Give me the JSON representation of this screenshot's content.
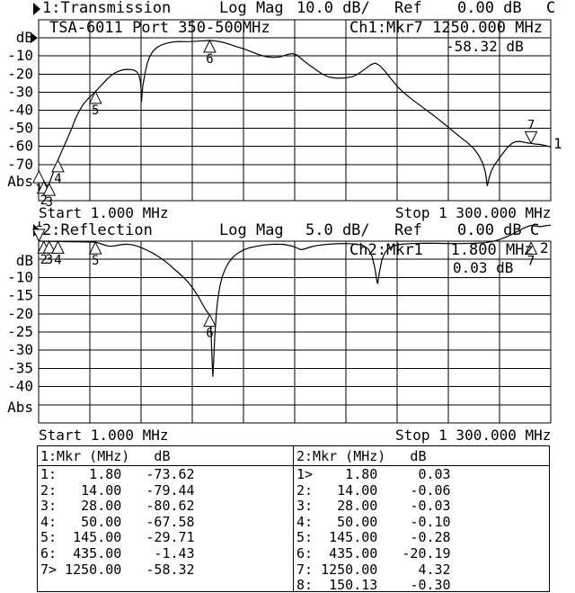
{
  "colors": {
    "fg": "#000000",
    "bg": "#ffffff"
  },
  "chart_data": [
    {
      "type": "line",
      "channel_header": {
        "indicator": "right-arrow",
        "name": "1:Transmission",
        "scale_label": "Log Mag",
        "scale": "10.0 dB/",
        "ref_label": "Ref",
        "ref": "0.00 dB",
        "cal": "C"
      },
      "title": "TSA-6011 Port 350-500MHz",
      "marker_readout": "Ch1:Mkr7 1250.000 MHz",
      "marker_value": "-58.32 dB",
      "xlabel_start": "Start 1.000 MHz",
      "xlabel_stop": "Stop 1 300.000 MHz",
      "x_range_mhz": [
        1,
        1300
      ],
      "db_per_div": 10,
      "ref_db": 0,
      "grid": "on",
      "trace_number": "1",
      "yticks": [
        {
          "label": "dB",
          "db": 0
        },
        {
          "label": "-10",
          "db": -10
        },
        {
          "label": "-20",
          "db": -20
        },
        {
          "label": "-30",
          "db": -30
        },
        {
          "label": "-40",
          "db": -40
        },
        {
          "label": "-50",
          "db": -50
        },
        {
          "label": "-60",
          "db": -60
        },
        {
          "label": "-70",
          "db": -70
        },
        {
          "label": "Abs",
          "db": -79.5
        }
      ],
      "markers": [
        {
          "n": "1",
          "f": 1.8,
          "db": -73.62
        },
        {
          "n": "2",
          "f": 14,
          "db": -79.44
        },
        {
          "n": "3",
          "f": 28,
          "db": -80.62
        },
        {
          "n": "4",
          "f": 50,
          "db": -67.58
        },
        {
          "n": "5",
          "f": 145,
          "db": -29.71
        },
        {
          "n": "6",
          "f": 435,
          "db": -1.43
        },
        {
          "n": "7",
          "f": 1250,
          "db": -58.32,
          "active": true
        }
      ],
      "trace": [
        [
          1,
          -74.5
        ],
        [
          1.8,
          -73.62
        ],
        [
          5,
          -75.8
        ],
        [
          9,
          -77.8
        ],
        [
          14,
          -79.44
        ],
        [
          19,
          -81
        ],
        [
          23,
          -81.8
        ],
        [
          28,
          -80.62
        ],
        [
          33,
          -77.5
        ],
        [
          40,
          -73.5
        ],
        [
          45,
          -70.5
        ],
        [
          50,
          -67.58
        ],
        [
          57,
          -64
        ],
        [
          65,
          -60
        ],
        [
          75,
          -55
        ],
        [
          85,
          -50
        ],
        [
          95,
          -44.5
        ],
        [
          105,
          -40
        ],
        [
          115,
          -36.5
        ],
        [
          125,
          -34
        ],
        [
          135,
          -31.8
        ],
        [
          145,
          -29.71
        ],
        [
          155,
          -27.3
        ],
        [
          165,
          -25
        ],
        [
          175,
          -22.7
        ],
        [
          185,
          -20.8
        ],
        [
          195,
          -19.3
        ],
        [
          205,
          -18.3
        ],
        [
          215,
          -17.6
        ],
        [
          225,
          -17.4
        ],
        [
          235,
          -17.5
        ],
        [
          243,
          -17.9
        ],
        [
          250,
          -18.8
        ],
        [
          255,
          -20.5
        ],
        [
          259,
          -24
        ],
        [
          261,
          -29
        ],
        [
          262,
          -35.3
        ],
        [
          263,
          -32
        ],
        [
          265,
          -27
        ],
        [
          268,
          -23
        ],
        [
          272,
          -18.5
        ],
        [
          277,
          -13.8
        ],
        [
          283,
          -10.3
        ],
        [
          291,
          -7.3
        ],
        [
          301,
          -5.3
        ],
        [
          313,
          -3.9
        ],
        [
          327,
          -2.9
        ],
        [
          341,
          -2.3
        ],
        [
          356,
          -2.0
        ],
        [
          371,
          -2.1
        ],
        [
          386,
          -2.05
        ],
        [
          402,
          -1.85
        ],
        [
          419,
          -1.6
        ],
        [
          435,
          -1.43
        ],
        [
          450,
          -1.7
        ],
        [
          463,
          -2.2
        ],
        [
          476,
          -2.9
        ],
        [
          490,
          -3.9
        ],
        [
          505,
          -5.0
        ],
        [
          521,
          -6.0
        ],
        [
          540,
          -7.6
        ],
        [
          559,
          -9.2
        ],
        [
          578,
          -10.4
        ],
        [
          597,
          -10.8
        ],
        [
          614,
          -10.5
        ],
        [
          630,
          -9.3
        ],
        [
          644,
          -8.6
        ],
        [
          657,
          -9.6
        ],
        [
          671,
          -12.2
        ],
        [
          686,
          -14.8
        ],
        [
          702,
          -17.2
        ],
        [
          719,
          -19.8
        ],
        [
          737,
          -21.7
        ],
        [
          757,
          -22.3
        ],
        [
          777,
          -22.2
        ],
        [
          797,
          -21.5
        ],
        [
          814,
          -19.6
        ],
        [
          830,
          -17
        ],
        [
          844,
          -14.8
        ],
        [
          855,
          -13.9
        ],
        [
          867,
          -15.4
        ],
        [
          881,
          -18.8
        ],
        [
          897,
          -23.2
        ],
        [
          914,
          -27.6
        ],
        [
          931,
          -31
        ],
        [
          949,
          -34.2
        ],
        [
          969,
          -37.4
        ],
        [
          989,
          -40.6
        ],
        [
          1009,
          -43.9
        ],
        [
          1029,
          -47.4
        ],
        [
          1049,
          -51
        ],
        [
          1069,
          -54.6
        ],
        [
          1088,
          -57.8
        ],
        [
          1104,
          -61
        ],
        [
          1117,
          -64.8
        ],
        [
          1127,
          -69
        ],
        [
          1134,
          -74
        ],
        [
          1139,
          -81.9
        ],
        [
          1143,
          -78
        ],
        [
          1149,
          -73.8
        ],
        [
          1157,
          -70.3
        ],
        [
          1166,
          -67.6
        ],
        [
          1178,
          -64
        ],
        [
          1190,
          -60.6
        ],
        [
          1201,
          -58.4
        ],
        [
          1211,
          -57.4
        ],
        [
          1221,
          -57.2
        ],
        [
          1231,
          -57.6
        ],
        [
          1241,
          -58.1
        ],
        [
          1250,
          -58.32
        ],
        [
          1261,
          -58.7
        ],
        [
          1273,
          -58.9
        ],
        [
          1286,
          -59.5
        ],
        [
          1300,
          -60.3
        ]
      ]
    },
    {
      "type": "line",
      "channel_header": {
        "indicator": "right-arrow",
        "name": "2:Reflection",
        "scale_label": "Log Mag",
        "scale": "5.0 dB/",
        "ref_label": "Ref",
        "ref": "0.00 dB",
        "cal": "C"
      },
      "title": "",
      "marker_readout": "Ch2:Mkr1   1.800 MHz",
      "marker_value": "0.03 dB",
      "xlabel_start": "Start 1.000 MHz",
      "xlabel_stop": "Stop 1 300.000 MHz",
      "x_range_mhz": [
        1,
        1300
      ],
      "db_per_div": 5,
      "ref_db": 0,
      "grid": "on",
      "trace_number": "2",
      "yticks": [
        {
          "label": "dB",
          "db": -5.4
        },
        {
          "label": "-10",
          "db": -10
        },
        {
          "label": "-15",
          "db": -15
        },
        {
          "label": "-20",
          "db": -20
        },
        {
          "label": "-25",
          "db": -25
        },
        {
          "label": "-30",
          "db": -30
        },
        {
          "label": "-35",
          "db": -35
        },
        {
          "label": "-40",
          "db": -40
        },
        {
          "label": "Abs",
          "db": -45.8
        }
      ],
      "markers": [
        {
          "n": "1",
          "f": 1.8,
          "db": 0.03,
          "active": true
        },
        {
          "n": "2",
          "f": 14,
          "db": -0.06
        },
        {
          "n": "3",
          "f": 28,
          "db": -0.03
        },
        {
          "n": "4",
          "f": 50,
          "db": -0.1
        },
        {
          "n": "5",
          "f": 145,
          "db": -0.28
        },
        {
          "n": "6",
          "f": 435,
          "db": -20.19
        },
        {
          "n": "7",
          "f": 1250,
          "db": 4.32,
          "apex_db": -0.35
        }
      ],
      "trace": [
        [
          1,
          0.02
        ],
        [
          1.8,
          0.03
        ],
        [
          14,
          -0.06
        ],
        [
          28,
          -0.03
        ],
        [
          50,
          -0.1
        ],
        [
          80,
          -0.15
        ],
        [
          110,
          -0.2
        ],
        [
          145,
          -0.28
        ],
        [
          156,
          -0.6
        ],
        [
          166,
          -1.0
        ],
        [
          176,
          -1.3
        ],
        [
          186,
          -1.4
        ],
        [
          196,
          -1.25
        ],
        [
          208,
          -1.0
        ],
        [
          222,
          -0.85
        ],
        [
          236,
          -0.95
        ],
        [
          250,
          -1.3
        ],
        [
          264,
          -1.9
        ],
        [
          278,
          -2.6
        ],
        [
          292,
          -3.4
        ],
        [
          306,
          -4.3
        ],
        [
          320,
          -5.4
        ],
        [
          334,
          -6.6
        ],
        [
          346,
          -7.8
        ],
        [
          358,
          -8.9
        ],
        [
          370,
          -10.1
        ],
        [
          382,
          -11.5
        ],
        [
          394,
          -13.2
        ],
        [
          406,
          -15.2
        ],
        [
          416,
          -17.2
        ],
        [
          425,
          -18.9
        ],
        [
          432,
          -19.9
        ],
        [
          435,
          -20.19
        ],
        [
          437,
          -22
        ],
        [
          439,
          -27
        ],
        [
          441,
          -33
        ],
        [
          443,
          -37.3
        ],
        [
          445,
          -33
        ],
        [
          448,
          -26
        ],
        [
          452,
          -19.5
        ],
        [
          456,
          -15.5
        ],
        [
          461,
          -12.3
        ],
        [
          467,
          -9.7
        ],
        [
          474,
          -7.7
        ],
        [
          483,
          -5.9
        ],
        [
          493,
          -4.5
        ],
        [
          505,
          -3.4
        ],
        [
          519,
          -2.5
        ],
        [
          535,
          -1.85
        ],
        [
          553,
          -1.4
        ],
        [
          574,
          -1.05
        ],
        [
          598,
          -0.85
        ],
        [
          622,
          -0.9
        ],
        [
          642,
          -1.25
        ],
        [
          658,
          -1.95
        ],
        [
          667,
          -2.35
        ],
        [
          677,
          -2.1
        ],
        [
          690,
          -1.6
        ],
        [
          708,
          -1.2
        ],
        [
          730,
          -0.9
        ],
        [
          756,
          -0.72
        ],
        [
          782,
          -0.68
        ],
        [
          806,
          -0.8
        ],
        [
          823,
          -1.15
        ],
        [
          837,
          -2.1
        ],
        [
          847,
          -4.2
        ],
        [
          854,
          -7.5
        ],
        [
          859,
          -11
        ],
        [
          861,
          -11.7
        ],
        [
          865,
          -8.8
        ],
        [
          871,
          -5.4
        ],
        [
          879,
          -3.2
        ],
        [
          890,
          -1.9
        ],
        [
          904,
          -1.2
        ],
        [
          922,
          -0.85
        ],
        [
          946,
          -0.68
        ],
        [
          974,
          -0.6
        ],
        [
          1004,
          -0.6
        ],
        [
          1038,
          -0.65
        ],
        [
          1072,
          -0.68
        ],
        [
          1104,
          -0.6
        ],
        [
          1130,
          -0.45
        ],
        [
          1152,
          -0.12
        ],
        [
          1170,
          0.45
        ],
        [
          1186,
          1.1
        ],
        [
          1201,
          1.85
        ],
        [
          1215,
          2.65
        ],
        [
          1229,
          3.45
        ],
        [
          1241,
          4.0
        ],
        [
          1250,
          4.32
        ],
        [
          1261,
          4.18
        ],
        [
          1273,
          3.95
        ],
        [
          1285,
          4.2
        ],
        [
          1300,
          4.4
        ]
      ]
    }
  ],
  "tables": [
    {
      "header": {
        "name": "1:Mkr (MHz)",
        "unit": "dB"
      },
      "rows": [
        {
          "label": "1:",
          "freq": "1.80",
          "db": "-73.62"
        },
        {
          "label": "2:",
          "freq": "14.00",
          "db": "-79.44"
        },
        {
          "label": "3:",
          "freq": "28.00",
          "db": "-80.62"
        },
        {
          "label": "4:",
          "freq": "50.00",
          "db": "-67.58"
        },
        {
          "label": "5:",
          "freq": "145.00",
          "db": "-29.71"
        },
        {
          "label": "6:",
          "freq": "435.00",
          "db": "-1.43"
        },
        {
          "label": "7>",
          "freq": "1250.00",
          "db": "-58.32"
        },
        {
          "label": "",
          "freq": "",
          "db": ""
        }
      ]
    },
    {
      "header": {
        "name": "2:Mkr (MHz)",
        "unit": "dB"
      },
      "rows": [
        {
          "label": "1>",
          "freq": "1.80",
          "db": "0.03"
        },
        {
          "label": "2:",
          "freq": "14.00",
          "db": "-0.06"
        },
        {
          "label": "3:",
          "freq": "28.00",
          "db": "-0.03"
        },
        {
          "label": "4:",
          "freq": "50.00",
          "db": "-0.10"
        },
        {
          "label": "5:",
          "freq": "145.00",
          "db": "-0.28"
        },
        {
          "label": "6:",
          "freq": "435.00",
          "db": "-20.19"
        },
        {
          "label": "7:",
          "freq": "1250.00",
          "db": "4.32"
        },
        {
          "label": "8:",
          "freq": "150.13",
          "db": "-0.30"
        }
      ]
    }
  ]
}
